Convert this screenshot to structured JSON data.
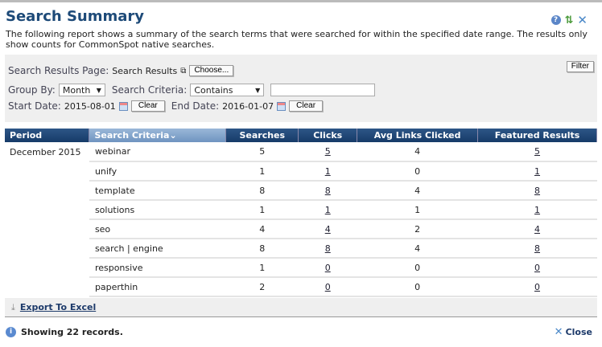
{
  "title": "Search Summary",
  "description": "The following report shows a summary of the search terms that were searched for within the specified date range. The results only show counts for CommonSpot native searches.",
  "filters": {
    "search_results_page_label": "Search Results Page:",
    "search_results_page_value": "Search Results",
    "choose_label": "Choose...",
    "filter_label": "Filter",
    "group_by_label": "Group By:",
    "group_by_value": "Month",
    "search_criteria_label": "Search Criteria:",
    "search_criteria_value": "Contains",
    "search_text": "",
    "start_date_label": "Start Date:",
    "start_date": "2015-08-01",
    "end_date_label": "End Date:",
    "end_date": "2016-01-07",
    "clear_label": "Clear"
  },
  "table": {
    "headers": [
      "Period",
      "Search Criteria",
      "Searches",
      "Clicks",
      "Avg Links Clicked",
      "Featured Results"
    ],
    "sort_indicator": "⌄",
    "period": "December 2015",
    "rows": [
      {
        "criteria": "webinar",
        "searches": "5",
        "clicks": "5",
        "avg": "4",
        "featured": "5"
      },
      {
        "criteria": "unify",
        "searches": "1",
        "clicks": "1",
        "avg": "0",
        "featured": "1"
      },
      {
        "criteria": "template",
        "searches": "8",
        "clicks": "8",
        "avg": "4",
        "featured": "8"
      },
      {
        "criteria": "solutions",
        "searches": "1",
        "clicks": "1",
        "avg": "1",
        "featured": "1"
      },
      {
        "criteria": "seo",
        "searches": "4",
        "clicks": "4",
        "avg": "2",
        "featured": "4"
      },
      {
        "criteria": "search | engine",
        "searches": "8",
        "clicks": "8",
        "avg": "4",
        "featured": "8"
      },
      {
        "criteria": "responsive",
        "searches": "1",
        "clicks": "0",
        "avg": "0",
        "featured": "0"
      },
      {
        "criteria": "paperthin",
        "searches": "2",
        "clicks": "0",
        "avg": "0",
        "featured": "0"
      }
    ]
  },
  "footer": {
    "export_label": "Export To Excel",
    "status": "Showing 22 records.",
    "close_label": "Close"
  },
  "colors": {
    "title": "#1d4a78",
    "header": "#1f4775",
    "sorted_header": "#8aaad0"
  }
}
